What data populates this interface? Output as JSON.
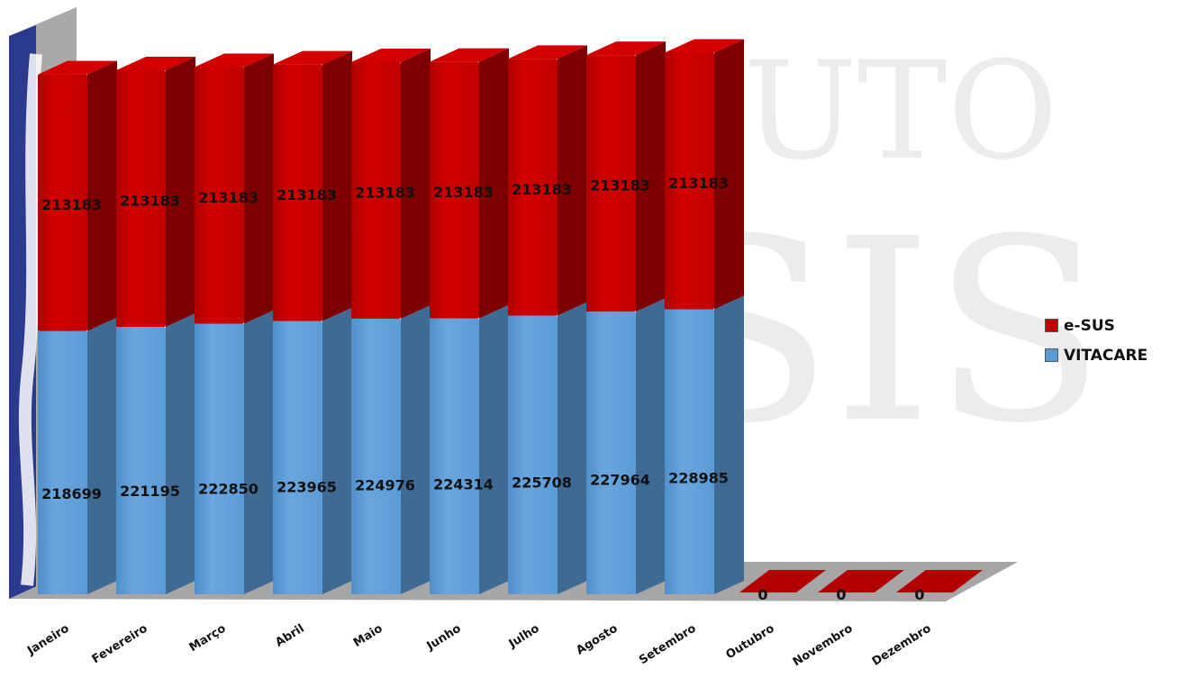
{
  "chart_data": {
    "type": "bar",
    "stacked": true,
    "style": "3d-column",
    "categories": [
      "Janeiro",
      "Fevereiro",
      "Março",
      "Abril",
      "Maio",
      "Junho",
      "Julho",
      "Agosto",
      "Setembro",
      "Outubro",
      "Novembro",
      "Dezembro"
    ],
    "series": [
      {
        "name": "VITACARE",
        "color": "#5B9BD5",
        "values": [
          218699,
          221195,
          222850,
          223965,
          224976,
          224314,
          225708,
          227964,
          228985,
          0,
          0,
          0
        ],
        "labels": [
          "218699",
          "221195",
          "222850",
          "223965",
          "224976",
          "224314",
          "225708",
          "227964",
          "228985",
          "",
          "",
          ""
        ]
      },
      {
        "name": "e-SUS",
        "color": "#C00000",
        "values": [
          213183,
          213183,
          213183,
          213183,
          213183,
          213183,
          213183,
          213183,
          213183,
          0,
          0,
          0
        ],
        "labels": [
          "213183",
          "213183",
          "213183",
          "213183",
          "213183",
          "213183",
          "213183",
          "213183",
          "213183",
          "0",
          "0",
          "0"
        ]
      }
    ],
    "ylim": [
      0,
      460000
    ],
    "grid": false,
    "legend_position": "right",
    "legend": [
      {
        "name": "e-SUS",
        "color": "#C00000"
      },
      {
        "name": "VITACARE",
        "color": "#5B9BD5"
      }
    ],
    "watermark": {
      "line1": "UTO",
      "line2": "SIS"
    }
  }
}
